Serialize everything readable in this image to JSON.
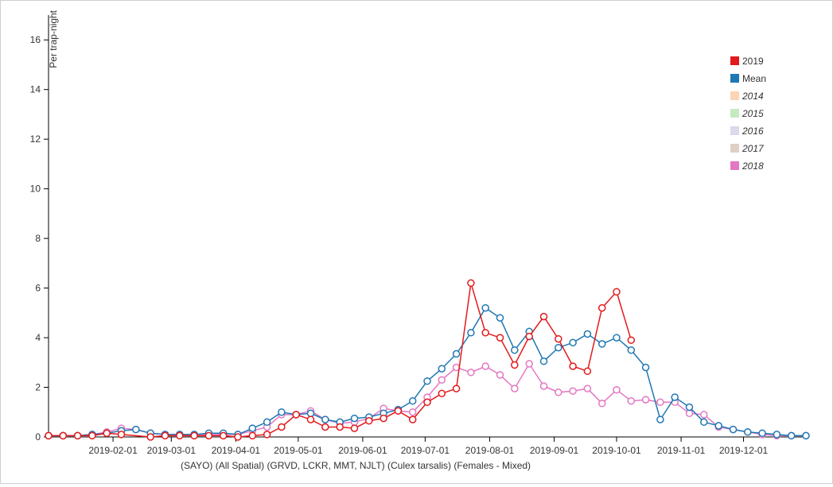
{
  "chart_data": {
    "type": "line",
    "ylabel": "Per trap-night",
    "xlabel": "(SAYO) (All Spatial) (GRVD, LCKR, MMT, NJLT) (Culex tarsalis) (Females - Mixed)",
    "ylim": [
      0,
      17
    ],
    "yticks": [
      {
        "value": 0,
        "label": "0"
      },
      {
        "value": 2,
        "label": "2"
      },
      {
        "value": 4,
        "label": "4"
      },
      {
        "value": 6,
        "label": "6"
      },
      {
        "value": 8,
        "label": "8"
      },
      {
        "value": 10,
        "label": "10"
      },
      {
        "value": 12,
        "label": "12"
      },
      {
        "value": 14,
        "label": "14"
      },
      {
        "value": 16,
        "label": "16"
      }
    ],
    "xlim": [
      "2019-01-01",
      "2019-12-31"
    ],
    "xticks": [
      {
        "date": "2019-02-01",
        "label": "2019-02-01"
      },
      {
        "date": "2019-03-01",
        "label": "2019-03-01"
      },
      {
        "date": "2019-04-01",
        "label": "2019-04-01"
      },
      {
        "date": "2019-05-01",
        "label": "2019-05-01"
      },
      {
        "date": "2019-06-01",
        "label": "2019-06-01"
      },
      {
        "date": "2019-07-01",
        "label": "2019-07-01"
      },
      {
        "date": "2019-08-01",
        "label": "2019-08-01"
      },
      {
        "date": "2019-09-01",
        "label": "2019-09-01"
      },
      {
        "date": "2019-10-01",
        "label": "2019-10-01"
      },
      {
        "date": "2019-11-01",
        "label": "2019-11-01"
      },
      {
        "date": "2019-12-01",
        "label": "2019-12-01"
      }
    ],
    "grid": false,
    "legend_position": "top-right",
    "legend": [
      {
        "label": "2019",
        "color": "#e31a1c"
      },
      {
        "label": "Mean",
        "color": "#1f78b4"
      },
      {
        "label": "2014",
        "color": "#fdd5b4"
      },
      {
        "label": "2015",
        "color": "#c7e9c0"
      },
      {
        "label": "2016",
        "color": "#dadaeb"
      },
      {
        "label": "2017",
        "color": "#e0cfc6"
      },
      {
        "label": "2018",
        "color": "#e377c2"
      }
    ],
    "series": [
      {
        "name": "2018",
        "color": "#e377c2",
        "points": [
          [
            "2019-01-01",
            0.05
          ],
          [
            "2019-01-08",
            0.05
          ],
          [
            "2019-01-15",
            0.05
          ],
          [
            "2019-01-22",
            0.1
          ],
          [
            "2019-01-29",
            0.2
          ],
          [
            "2019-02-05",
            0.35
          ],
          [
            "2019-02-12",
            0.3
          ],
          [
            "2019-02-19",
            0.15
          ],
          [
            "2019-02-26",
            0.1
          ],
          [
            "2019-03-05",
            0.1
          ],
          [
            "2019-03-12",
            0.1
          ],
          [
            "2019-03-19",
            0.1
          ],
          [
            "2019-03-26",
            0.1
          ],
          [
            "2019-04-02",
            0.1
          ],
          [
            "2019-04-09",
            0.25
          ],
          [
            "2019-04-16",
            0.4
          ],
          [
            "2019-04-23",
            0.9
          ],
          [
            "2019-04-30",
            0.9
          ],
          [
            "2019-05-07",
            1.05
          ],
          [
            "2019-05-14",
            0.7
          ],
          [
            "2019-05-21",
            0.55
          ],
          [
            "2019-05-28",
            0.6
          ],
          [
            "2019-06-04",
            0.75
          ],
          [
            "2019-06-11",
            1.15
          ],
          [
            "2019-06-18",
            1.05
          ],
          [
            "2019-06-25",
            1.0
          ],
          [
            "2019-07-02",
            1.6
          ],
          [
            "2019-07-09",
            2.3
          ],
          [
            "2019-07-16",
            2.8
          ],
          [
            "2019-07-23",
            2.6
          ],
          [
            "2019-07-30",
            2.85
          ],
          [
            "2019-08-06",
            2.5
          ],
          [
            "2019-08-13",
            1.95
          ],
          [
            "2019-08-20",
            2.95
          ],
          [
            "2019-08-27",
            2.05
          ],
          [
            "2019-09-03",
            1.8
          ],
          [
            "2019-09-10",
            1.85
          ],
          [
            "2019-09-17",
            1.95
          ],
          [
            "2019-09-24",
            1.35
          ],
          [
            "2019-10-01",
            1.9
          ],
          [
            "2019-10-08",
            1.45
          ],
          [
            "2019-10-15",
            1.5
          ],
          [
            "2019-10-22",
            1.4
          ],
          [
            "2019-10-29",
            1.4
          ],
          [
            "2019-11-05",
            0.95
          ],
          [
            "2019-11-12",
            0.9
          ],
          [
            "2019-11-19",
            0.4
          ],
          [
            "2019-11-26",
            0.3
          ],
          [
            "2019-12-03",
            0.2
          ],
          [
            "2019-12-10",
            0.1
          ],
          [
            "2019-12-17",
            0.05
          ],
          [
            "2019-12-24",
            0.05
          ],
          [
            "2019-12-31",
            0.05
          ]
        ]
      },
      {
        "name": "Mean",
        "color": "#1f78b4",
        "points": [
          [
            "2019-01-01",
            0.05
          ],
          [
            "2019-01-08",
            0.05
          ],
          [
            "2019-01-15",
            0.05
          ],
          [
            "2019-01-22",
            0.1
          ],
          [
            "2019-01-29",
            0.15
          ],
          [
            "2019-02-05",
            0.25
          ],
          [
            "2019-02-12",
            0.3
          ],
          [
            "2019-02-19",
            0.15
          ],
          [
            "2019-02-26",
            0.1
          ],
          [
            "2019-03-05",
            0.1
          ],
          [
            "2019-03-12",
            0.1
          ],
          [
            "2019-03-19",
            0.15
          ],
          [
            "2019-03-26",
            0.15
          ],
          [
            "2019-04-02",
            0.1
          ],
          [
            "2019-04-09",
            0.35
          ],
          [
            "2019-04-16",
            0.6
          ],
          [
            "2019-04-23",
            1.0
          ],
          [
            "2019-04-30",
            0.9
          ],
          [
            "2019-05-07",
            0.95
          ],
          [
            "2019-05-14",
            0.7
          ],
          [
            "2019-05-21",
            0.6
          ],
          [
            "2019-05-28",
            0.75
          ],
          [
            "2019-06-04",
            0.8
          ],
          [
            "2019-06-11",
            0.95
          ],
          [
            "2019-06-18",
            1.1
          ],
          [
            "2019-06-25",
            1.45
          ],
          [
            "2019-07-02",
            2.25
          ],
          [
            "2019-07-09",
            2.75
          ],
          [
            "2019-07-16",
            3.35
          ],
          [
            "2019-07-23",
            4.2
          ],
          [
            "2019-07-30",
            5.2
          ],
          [
            "2019-08-06",
            4.8
          ],
          [
            "2019-08-13",
            3.5
          ],
          [
            "2019-08-20",
            4.25
          ],
          [
            "2019-08-27",
            3.05
          ],
          [
            "2019-09-03",
            3.6
          ],
          [
            "2019-09-10",
            3.8
          ],
          [
            "2019-09-17",
            4.15
          ],
          [
            "2019-09-24",
            3.75
          ],
          [
            "2019-10-01",
            4.0
          ],
          [
            "2019-10-08",
            3.5
          ],
          [
            "2019-10-15",
            2.8
          ],
          [
            "2019-10-22",
            0.7
          ],
          [
            "2019-10-29",
            1.6
          ],
          [
            "2019-11-05",
            1.2
          ],
          [
            "2019-11-12",
            0.6
          ],
          [
            "2019-11-19",
            0.45
          ],
          [
            "2019-11-26",
            0.3
          ],
          [
            "2019-12-03",
            0.2
          ],
          [
            "2019-12-10",
            0.15
          ],
          [
            "2019-12-17",
            0.1
          ],
          [
            "2019-12-24",
            0.05
          ],
          [
            "2019-12-31",
            0.05
          ]
        ]
      },
      {
        "name": "2019",
        "color": "#e31a1c",
        "points": [
          [
            "2019-01-01",
            0.05
          ],
          [
            "2019-01-08",
            0.05
          ],
          [
            "2019-01-15",
            0.05
          ],
          [
            "2019-01-22",
            0.05
          ],
          [
            "2019-01-29",
            0.15
          ],
          [
            "2019-02-05",
            0.1
          ],
          [
            "2019-02-19",
            0.0
          ],
          [
            "2019-02-26",
            0.05
          ],
          [
            "2019-03-05",
            0.05
          ],
          [
            "2019-03-12",
            0.05
          ],
          [
            "2019-03-19",
            0.05
          ],
          [
            "2019-03-26",
            0.05
          ],
          [
            "2019-04-02",
            0.0
          ],
          [
            "2019-04-09",
            0.05
          ],
          [
            "2019-04-16",
            0.1
          ],
          [
            "2019-04-23",
            0.4
          ],
          [
            "2019-04-30",
            0.9
          ],
          [
            "2019-05-07",
            0.7
          ],
          [
            "2019-05-14",
            0.4
          ],
          [
            "2019-05-21",
            0.4
          ],
          [
            "2019-05-28",
            0.35
          ],
          [
            "2019-06-04",
            0.65
          ],
          [
            "2019-06-11",
            0.75
          ],
          [
            "2019-06-18",
            1.05
          ],
          [
            "2019-06-25",
            0.7
          ],
          [
            "2019-07-02",
            1.4
          ],
          [
            "2019-07-09",
            1.75
          ],
          [
            "2019-07-16",
            1.95
          ],
          [
            "2019-07-23",
            6.2
          ],
          [
            "2019-07-30",
            4.2
          ],
          [
            "2019-08-06",
            4.0
          ],
          [
            "2019-08-13",
            2.9
          ],
          [
            "2019-08-20",
            4.05
          ],
          [
            "2019-08-27",
            4.85
          ],
          [
            "2019-09-03",
            3.95
          ],
          [
            "2019-09-10",
            2.85
          ],
          [
            "2019-09-17",
            2.65
          ],
          [
            "2019-09-24",
            5.2
          ],
          [
            "2019-10-01",
            5.85
          ],
          [
            "2019-10-08",
            3.9
          ]
        ]
      }
    ]
  }
}
